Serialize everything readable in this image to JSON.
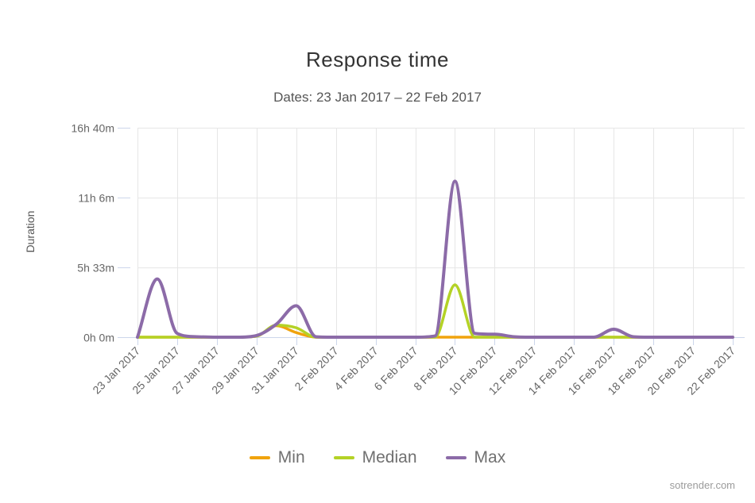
{
  "page": {
    "watermark": "sotrender.com",
    "background": "#ffffff"
  },
  "chart_data": {
    "type": "line",
    "title": "Response time",
    "subtitle": "Dates: 23 Jan 2017 – 22 Feb 2017",
    "xlabel": "",
    "ylabel": "Duration",
    "grid": true,
    "legend_position": "bottom",
    "x_categories": [
      "23 Jan 2017",
      "24 Jan 2017",
      "25 Jan 2017",
      "26 Jan 2017",
      "27 Jan 2017",
      "28 Jan 2017",
      "29 Jan 2017",
      "30 Jan 2017",
      "31 Jan 2017",
      "1 Feb 2017",
      "2 Feb 2017",
      "3 Feb 2017",
      "4 Feb 2017",
      "5 Feb 2017",
      "6 Feb 2017",
      "7 Feb 2017",
      "8 Feb 2017",
      "9 Feb 2017",
      "10 Feb 2017",
      "11 Feb 2017",
      "12 Feb 2017",
      "13 Feb 2017",
      "14 Feb 2017",
      "15 Feb 2017",
      "16 Feb 2017",
      "17 Feb 2017",
      "18 Feb 2017",
      "19 Feb 2017",
      "20 Feb 2017",
      "21 Feb 2017",
      "22 Feb 2017"
    ],
    "x_label_every": 2,
    "y_max_minutes": 1000,
    "y_ticks": [
      {
        "label": "0h 0m",
        "minutes": 0
      },
      {
        "label": "5h 33m",
        "minutes": 333
      },
      {
        "label": "11h 6m",
        "minutes": 666
      },
      {
        "label": "16h 40m",
        "minutes": 1000
      }
    ],
    "series": [
      {
        "name": "Min",
        "color": "#F0A30D",
        "values_minutes": [
          0,
          0,
          0,
          0,
          0,
          0,
          5,
          55,
          22,
          0,
          0,
          0,
          0,
          0,
          0,
          0,
          0,
          0,
          0,
          0,
          0,
          0,
          0,
          0,
          0,
          0,
          0,
          0,
          0,
          0,
          0
        ]
      },
      {
        "name": "Median",
        "color": "#B4D226",
        "values_minutes": [
          0,
          0,
          0,
          0,
          0,
          0,
          5,
          58,
          45,
          0,
          0,
          0,
          0,
          0,
          0,
          0,
          250,
          0,
          0,
          0,
          0,
          0,
          0,
          0,
          0,
          0,
          0,
          0,
          0,
          0,
          0
        ]
      },
      {
        "name": "Max",
        "color": "#8C6BA8",
        "values_minutes": [
          0,
          278,
          18,
          2,
          0,
          0,
          8,
          62,
          150,
          2,
          0,
          0,
          0,
          0,
          0,
          6,
          745,
          18,
          14,
          2,
          0,
          0,
          0,
          0,
          38,
          2,
          0,
          0,
          0,
          0,
          0
        ]
      }
    ]
  },
  "colors": {
    "gridline": "#e6e6e6",
    "axis_line": "#ccd6eb",
    "tick_label": "#666666",
    "title": "#333333",
    "subtitle": "#555555",
    "legend_text": "#707070",
    "watermark": "#9b9b9b"
  }
}
